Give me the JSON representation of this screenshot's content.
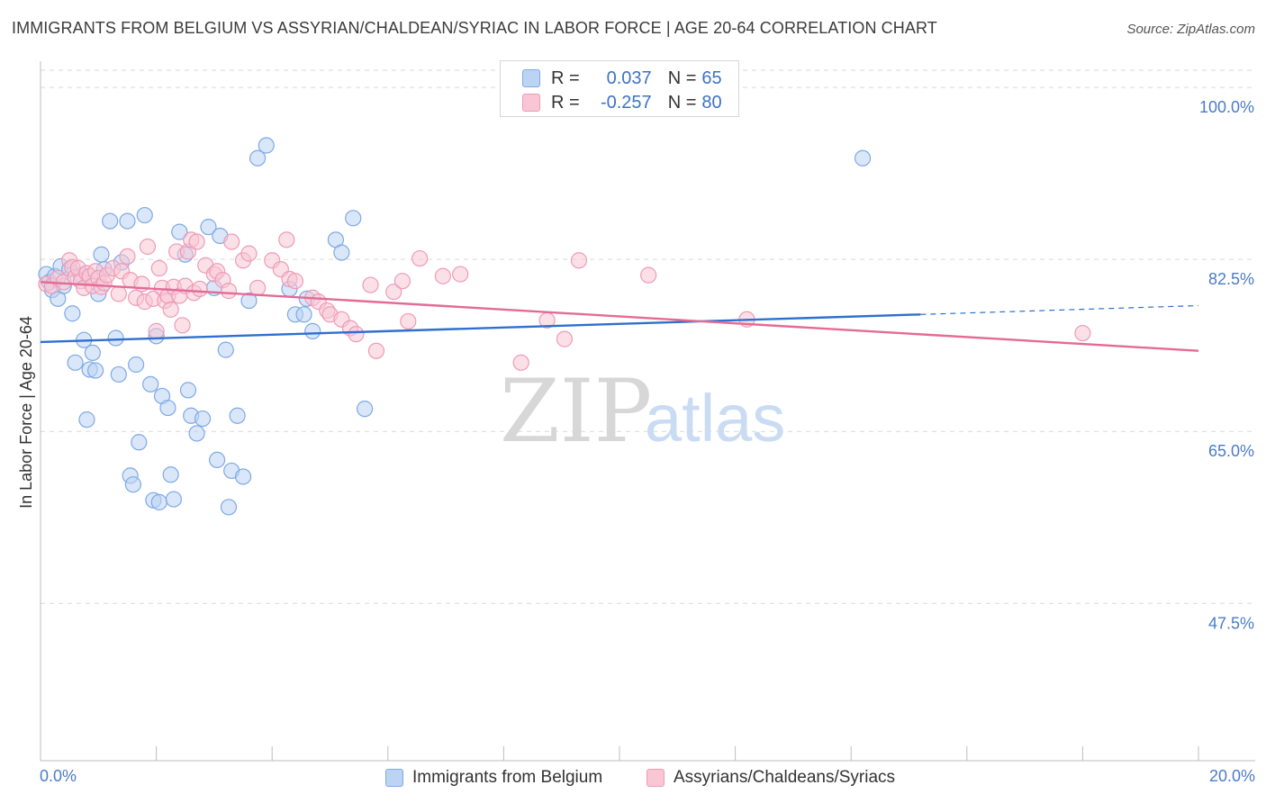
{
  "title": "IMMIGRANTS FROM BELGIUM VS ASSYRIAN/CHALDEAN/SYRIAC IN LABOR FORCE | AGE 20-64 CORRELATION CHART",
  "source": "Source: ZipAtlas.com",
  "watermark": {
    "zip": "ZIP",
    "atlas": "atlas"
  },
  "legend": {
    "r_label": "R =",
    "n_label": "N =",
    "blue": {
      "r": "0.037",
      "n": "65"
    },
    "pink": {
      "r": "-0.257",
      "n": "80"
    }
  },
  "bottom_legend": {
    "blue_label": "Immigrants from Belgium",
    "pink_label": "Assyrians/Chaldeans/Syriacs"
  },
  "x_axis": {
    "min_label": "0.0%",
    "max_label": "20.0%"
  },
  "colors": {
    "blue_fill": "#bcd4f4",
    "blue_stroke": "#7ea9e6",
    "blue_line": "#2f6fcf",
    "pink_fill": "#f8c6d5",
    "pink_stroke": "#ee9bb6",
    "pink_line": "#e36b96",
    "grid": "#d9d9d9",
    "tick_label": "#4a7cc9"
  },
  "chart_data": {
    "type": "scatter",
    "title": "IMMIGRANTS FROM BELGIUM VS ASSYRIAN/CHALDEAN/SYRIAC IN LABOR FORCE | AGE 20-64 CORRELATION CHART",
    "xlabel": "",
    "ylabel": "In Labor Force | Age 20-64",
    "xlim": [
      0,
      20
    ],
    "ylim": [
      31.5,
      102.3
    ],
    "y_ticks": [
      100,
      82.5,
      65,
      47.5
    ],
    "y_tick_labels": [
      "100.0%",
      "82.5%",
      "65.0%",
      "47.5%"
    ],
    "x_tick_labels": [
      "0.0%",
      "20.0%"
    ],
    "legend_position": "top-center",
    "series": [
      {
        "name": "Immigrants from Belgium",
        "r": 0.037,
        "n": 65,
        "trend": {
          "x0": 0,
          "y0": 74.1,
          "x1": 15.2,
          "y1": 76.9,
          "dashed_to_x": 20,
          "dashed_to_y": 77.8
        },
        "points": [
          [
            0.1,
            81.0
          ],
          [
            0.15,
            80.2
          ],
          [
            0.2,
            79.4
          ],
          [
            0.25,
            80.8
          ],
          [
            0.3,
            78.5
          ],
          [
            0.35,
            81.8
          ],
          [
            0.4,
            79.8
          ],
          [
            0.5,
            81.5
          ],
          [
            0.55,
            77.0
          ],
          [
            0.6,
            72.0
          ],
          [
            0.7,
            80.9
          ],
          [
            0.75,
            74.3
          ],
          [
            0.8,
            66.2
          ],
          [
            0.85,
            71.3
          ],
          [
            0.9,
            73.0
          ],
          [
            0.95,
            71.2
          ],
          [
            1.0,
            79.0
          ],
          [
            1.05,
            83.0
          ],
          [
            1.1,
            81.5
          ],
          [
            1.2,
            86.4
          ],
          [
            1.3,
            74.5
          ],
          [
            1.35,
            70.8
          ],
          [
            1.4,
            82.2
          ],
          [
            1.5,
            86.4
          ],
          [
            1.55,
            60.5
          ],
          [
            1.6,
            59.6
          ],
          [
            1.65,
            71.8
          ],
          [
            1.7,
            63.9
          ],
          [
            1.8,
            87.0
          ],
          [
            1.9,
            69.8
          ],
          [
            1.95,
            58.0
          ],
          [
            2.0,
            74.7
          ],
          [
            2.05,
            57.8
          ],
          [
            2.1,
            68.6
          ],
          [
            2.2,
            67.4
          ],
          [
            2.25,
            60.6
          ],
          [
            2.3,
            58.1
          ],
          [
            2.4,
            85.3
          ],
          [
            2.5,
            83.0
          ],
          [
            2.55,
            69.2
          ],
          [
            2.6,
            66.6
          ],
          [
            2.7,
            64.8
          ],
          [
            2.8,
            66.3
          ],
          [
            2.9,
            85.8
          ],
          [
            3.0,
            79.6
          ],
          [
            3.05,
            62.1
          ],
          [
            3.1,
            84.9
          ],
          [
            3.2,
            73.3
          ],
          [
            3.25,
            57.3
          ],
          [
            3.3,
            61.0
          ],
          [
            3.4,
            66.6
          ],
          [
            3.5,
            60.4
          ],
          [
            3.6,
            78.3
          ],
          [
            3.75,
            92.8
          ],
          [
            3.9,
            94.1
          ],
          [
            4.3,
            79.5
          ],
          [
            4.4,
            76.9
          ],
          [
            4.55,
            76.9
          ],
          [
            4.6,
            78.5
          ],
          [
            4.7,
            75.2
          ],
          [
            5.1,
            84.5
          ],
          [
            5.2,
            83.2
          ],
          [
            5.4,
            86.7
          ],
          [
            5.6,
            67.3
          ],
          [
            14.2,
            92.8
          ]
        ]
      },
      {
        "name": "Assyrians/Chaldeans/Syriacs",
        "r": -0.257,
        "n": 80,
        "trend": {
          "x0": 0,
          "y0": 80.2,
          "x1": 20,
          "y1": 73.2
        },
        "points": [
          [
            0.1,
            80.0
          ],
          [
            0.2,
            79.8
          ],
          [
            0.3,
            80.6
          ],
          [
            0.4,
            80.2
          ],
          [
            0.5,
            82.4
          ],
          [
            0.55,
            81.7
          ],
          [
            0.6,
            80.7
          ],
          [
            0.65,
            81.6
          ],
          [
            0.7,
            80.3
          ],
          [
            0.75,
            79.6
          ],
          [
            0.8,
            81.1
          ],
          [
            0.85,
            80.8
          ],
          [
            0.9,
            79.8
          ],
          [
            0.95,
            81.3
          ],
          [
            1.0,
            80.6
          ],
          [
            1.05,
            79.7
          ],
          [
            1.1,
            80.1
          ],
          [
            1.15,
            80.9
          ],
          [
            1.25,
            81.6
          ],
          [
            1.35,
            79.0
          ],
          [
            1.4,
            81.3
          ],
          [
            1.5,
            82.8
          ],
          [
            1.55,
            80.4
          ],
          [
            1.65,
            78.6
          ],
          [
            1.75,
            80.0
          ],
          [
            1.8,
            78.2
          ],
          [
            1.85,
            83.8
          ],
          [
            1.95,
            78.5
          ],
          [
            2.0,
            75.2
          ],
          [
            2.05,
            81.6
          ],
          [
            2.1,
            79.6
          ],
          [
            2.15,
            78.3
          ],
          [
            2.2,
            78.8
          ],
          [
            2.25,
            77.4
          ],
          [
            2.3,
            79.7
          ],
          [
            2.35,
            83.3
          ],
          [
            2.4,
            78.8
          ],
          [
            2.45,
            75.8
          ],
          [
            2.5,
            79.8
          ],
          [
            2.55,
            83.3
          ],
          [
            2.6,
            84.5
          ],
          [
            2.65,
            79.1
          ],
          [
            2.7,
            84.3
          ],
          [
            2.75,
            79.5
          ],
          [
            2.85,
            81.9
          ],
          [
            3.0,
            81.0
          ],
          [
            3.05,
            81.3
          ],
          [
            3.15,
            80.4
          ],
          [
            3.25,
            79.3
          ],
          [
            3.3,
            84.3
          ],
          [
            3.5,
            82.4
          ],
          [
            3.6,
            83.1
          ],
          [
            3.75,
            79.6
          ],
          [
            4.0,
            82.4
          ],
          [
            4.15,
            81.5
          ],
          [
            4.25,
            84.5
          ],
          [
            4.3,
            80.5
          ],
          [
            4.4,
            80.3
          ],
          [
            4.7,
            78.6
          ],
          [
            4.8,
            78.2
          ],
          [
            4.95,
            77.3
          ],
          [
            5.0,
            76.9
          ],
          [
            5.2,
            76.4
          ],
          [
            5.35,
            75.5
          ],
          [
            5.45,
            74.9
          ],
          [
            5.7,
            79.9
          ],
          [
            5.8,
            73.2
          ],
          [
            6.1,
            79.2
          ],
          [
            6.25,
            80.3
          ],
          [
            6.35,
            76.2
          ],
          [
            6.55,
            82.6
          ],
          [
            6.95,
            80.8
          ],
          [
            7.25,
            81.0
          ],
          [
            8.3,
            72.0
          ],
          [
            8.75,
            76.3
          ],
          [
            9.05,
            74.4
          ],
          [
            9.3,
            82.4
          ],
          [
            10.5,
            80.9
          ],
          [
            12.2,
            76.4
          ],
          [
            18.0,
            75.0
          ]
        ]
      }
    ]
  }
}
